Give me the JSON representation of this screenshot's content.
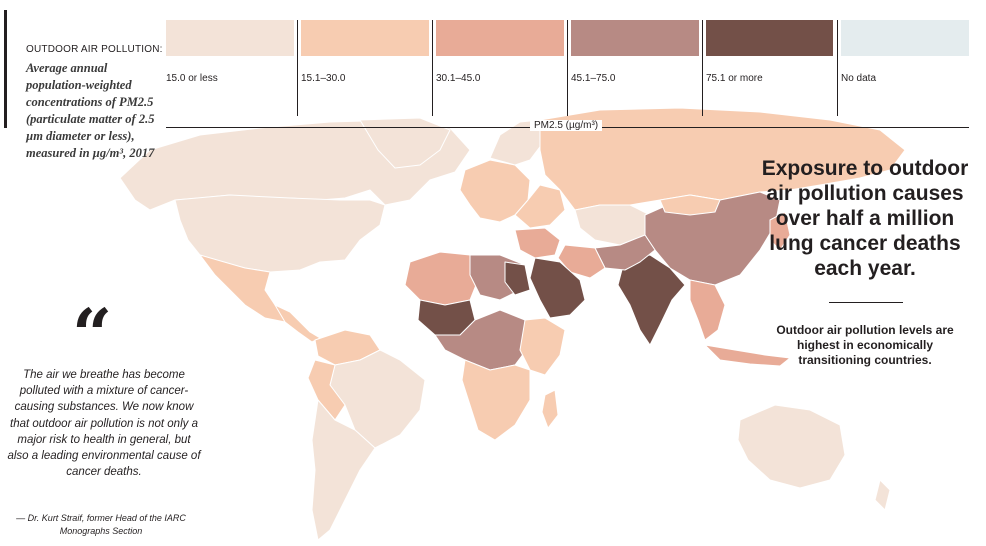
{
  "legend": {
    "kicker": "OUTDOOR AIR POLLUTION:",
    "description": "Average annual population-weighted concentrations of PM2.5 (particulate matter of 2.5 µm diameter or less), measured in µg/m³, 2017",
    "axis_label": "PM2.5 (µg/m³)",
    "bins": [
      {
        "label": "15.0 or less",
        "color": "#f3e3d8"
      },
      {
        "label": "15.1–30.0",
        "color": "#f7ccb1"
      },
      {
        "label": "30.1–45.0",
        "color": "#e8ab97"
      },
      {
        "label": "45.1–75.0",
        "color": "#b78a84"
      },
      {
        "label": "75.1 or more",
        "color": "#735048"
      },
      {
        "label": "No data",
        "color": "#e4ecee"
      }
    ]
  },
  "headline": "Exposure to outdoor air pollution causes over half a million lung cancer deaths each year.",
  "subhead": "Outdoor air pollution levels are highest in economically transitioning countries.",
  "quote": {
    "mark": "“",
    "text": "The air we breathe has become polluted with a mixture of cancer-causing substances. We now know that outdoor air pollution is not only a major risk to health in general, but also a leading environmental cause of cancer deaths.",
    "attribution": "— Dr. Kurt Straif, former Head of the IARC Monographs Section"
  }
}
